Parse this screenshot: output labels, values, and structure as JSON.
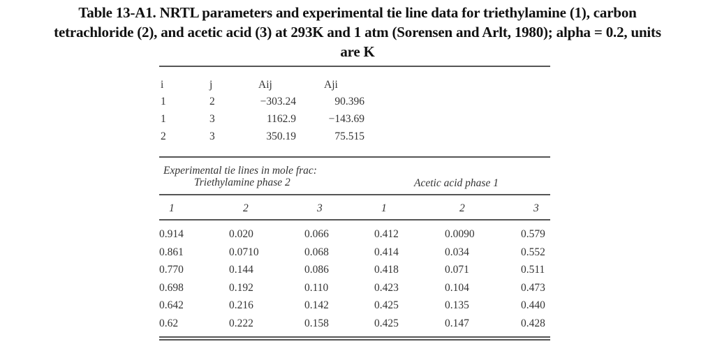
{
  "caption": {
    "line1": "Table 13-A1. NRTL parameters and experimental tie line data for triethylamine (1), carbon",
    "line2": "tetrachloride (2), and acetic acid (3) at 293K and 1 atm (Sorensen and Arlt, 1980); alpha = 0.2, units",
    "line3": "are K"
  },
  "nrtl": {
    "headers": {
      "i": "i",
      "j": "j",
      "aij": "Aij",
      "aji": "Aji"
    },
    "rows": [
      {
        "i": "1",
        "j": "2",
        "aij": "−303.24",
        "aji": "90.396"
      },
      {
        "i": "1",
        "j": "3",
        "aij": "1162.9",
        "aji": "−143.69"
      },
      {
        "i": "2",
        "j": "3",
        "aij": "350.19",
        "aji": "75.515"
      }
    ]
  },
  "tielines": {
    "title": "Experimental tie lines in mole frac:",
    "phase_left": "Triethylamine phase 2",
    "phase_right": "Acetic acid phase 1",
    "col_headers": [
      "1",
      "2",
      "3",
      "1",
      "2",
      "3"
    ],
    "rows": [
      [
        "0.914",
        "0.020",
        "0.066",
        "0.412",
        "0.0090",
        "0.579"
      ],
      [
        "0.861",
        "0.0710",
        "0.068",
        "0.414",
        "0.034",
        "0.552"
      ],
      [
        "0.770",
        "0.144",
        "0.086",
        "0.418",
        "0.071",
        "0.511"
      ],
      [
        "0.698",
        "0.192",
        "0.110",
        "0.423",
        "0.104",
        "0.473"
      ],
      [
        "0.642",
        "0.216",
        "0.142",
        "0.425",
        "0.135",
        "0.440"
      ],
      [
        "0.62",
        "0.222",
        "0.158",
        "0.425",
        "0.147",
        "0.428"
      ]
    ]
  }
}
